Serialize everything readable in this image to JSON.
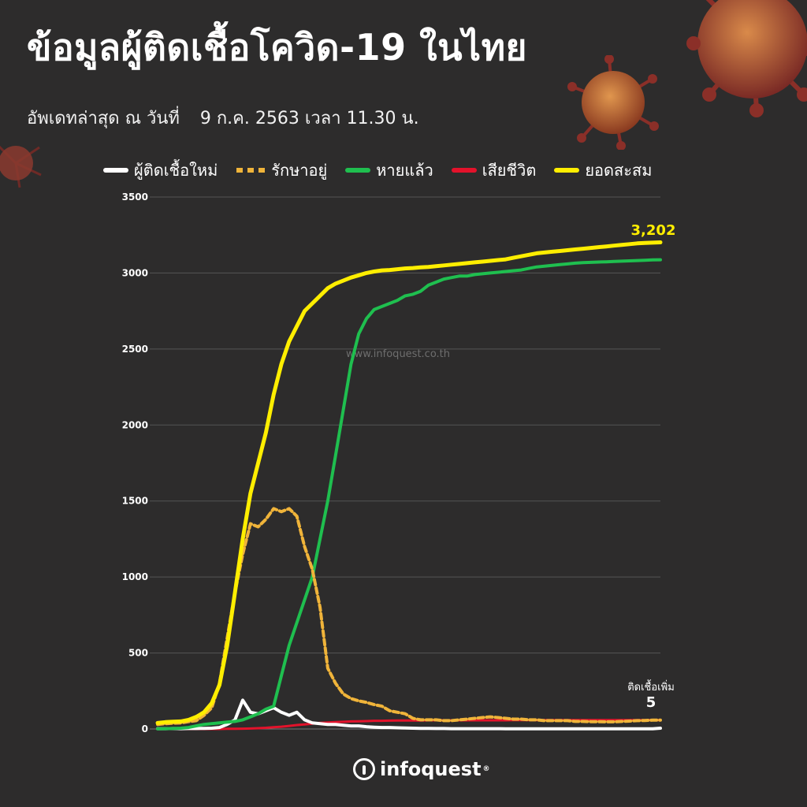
{
  "header": {
    "title": "ข้อมูลผู้ติดเชื้อโควิด-19 ในไทย",
    "update_label": "อัพเดทล่าสุด ณ วันที่",
    "update_date": "9 ก.ค. 2563 เวลา 11.30 น."
  },
  "colors": {
    "new": "#ffffff",
    "treating": "#f0b43a",
    "recovered": "#1fbf4f",
    "deaths": "#e3122b",
    "cumulative": "#ffee00",
    "grid": "#555555",
    "axis_text": "#ffffff"
  },
  "chart_data": {
    "type": "line",
    "ylim": [
      0,
      3500
    ],
    "yticks": [
      0,
      500,
      1000,
      1500,
      2000,
      2500,
      3000,
      3500
    ],
    "ytick_labels": [
      "0",
      "500",
      "1000",
      "1500",
      "2000",
      "2500",
      "3000",
      "3500"
    ],
    "watermark": "www.infoquest.co.th",
    "x": [
      0,
      1,
      2,
      3,
      4,
      5,
      6,
      7,
      8,
      9,
      10,
      11,
      12,
      13,
      14,
      15,
      16,
      17,
      18,
      19,
      20,
      21,
      22,
      23,
      24,
      25,
      26,
      27,
      28,
      29,
      30,
      31,
      32,
      33,
      34,
      35,
      36,
      37,
      38,
      39,
      40,
      41,
      42,
      43,
      44,
      45,
      46,
      47,
      48,
      49,
      50,
      51,
      52,
      53,
      54,
      55,
      56,
      57,
      58,
      59,
      60,
      61,
      62,
      63,
      64,
      65
    ],
    "series": [
      {
        "key": "new",
        "name": "ผู้ติดเชื้อใหม่",
        "values": [
          2,
          2,
          3,
          2,
          3,
          3,
          4,
          5,
          10,
          30,
          60,
          190,
          110,
          100,
          120,
          140,
          110,
          90,
          110,
          60,
          40,
          35,
          30,
          30,
          25,
          20,
          20,
          15,
          12,
          10,
          10,
          8,
          6,
          5,
          4,
          4,
          3,
          3,
          2,
          2,
          2,
          2,
          2,
          2,
          2,
          1,
          1,
          1,
          1,
          1,
          1,
          1,
          1,
          1,
          1,
          1,
          1,
          1,
          1,
          1,
          1,
          1,
          1,
          1,
          1,
          5
        ]
      },
      {
        "key": "treating",
        "name": "รักษาอยู่",
        "values": [
          30,
          35,
          38,
          40,
          48,
          55,
          90,
          140,
          300,
          600,
          900,
          1150,
          1350,
          1330,
          1380,
          1450,
          1430,
          1450,
          1400,
          1200,
          1050,
          800,
          400,
          300,
          230,
          200,
          185,
          175,
          160,
          150,
          120,
          110,
          100,
          70,
          60,
          60,
          60,
          55,
          55,
          60,
          65,
          70,
          75,
          80,
          75,
          70,
          65,
          65,
          60,
          60,
          55,
          55,
          55,
          55,
          50,
          50,
          48,
          48,
          47,
          47,
          50,
          52,
          55,
          56,
          58,
          58
        ]
      },
      {
        "key": "recovered",
        "name": "หายแล้ว",
        "values": [
          1,
          2,
          3,
          5,
          10,
          20,
          30,
          35,
          40,
          45,
          50,
          60,
          80,
          100,
          130,
          150,
          350,
          550,
          700,
          850,
          1000,
          1250,
          1500,
          1800,
          2100,
          2400,
          2600,
          2700,
          2760,
          2780,
          2800,
          2820,
          2850,
          2860,
          2880,
          2920,
          2940,
          2960,
          2970,
          2980,
          2980,
          2990,
          2995,
          3000,
          3005,
          3010,
          3015,
          3020,
          3030,
          3040,
          3045,
          3050,
          3055,
          3060,
          3065,
          3068,
          3070,
          3072,
          3074,
          3076,
          3078,
          3080,
          3082,
          3084,
          3086,
          3087
        ]
      },
      {
        "key": "deaths",
        "name": "เสียชีวิต",
        "values": [
          0,
          0,
          0,
          0,
          0,
          0,
          0,
          0,
          0,
          1,
          1,
          2,
          3,
          5,
          8,
          12,
          15,
          20,
          26,
          30,
          35,
          40,
          43,
          45,
          47,
          50,
          51,
          52,
          54,
          54,
          55,
          56,
          56,
          56,
          56,
          57,
          57,
          57,
          57,
          57,
          57,
          57,
          57,
          57,
          57,
          57,
          58,
          58,
          58,
          58,
          58,
          58,
          58,
          58,
          58,
          58,
          58,
          58,
          58,
          58,
          58,
          58,
          58,
          58,
          58,
          58
        ]
      },
      {
        "key": "cumulative",
        "name": "ยอดสะสม",
        "values": [
          40,
          45,
          48,
          50,
          60,
          80,
          110,
          170,
          290,
          550,
          900,
          1250,
          1550,
          1750,
          1950,
          2200,
          2400,
          2550,
          2650,
          2750,
          2800,
          2850,
          2900,
          2930,
          2950,
          2970,
          2985,
          3000,
          3010,
          3017,
          3020,
          3025,
          3030,
          3033,
          3037,
          3040,
          3045,
          3050,
          3055,
          3060,
          3065,
          3070,
          3075,
          3080,
          3085,
          3090,
          3100,
          3110,
          3120,
          3130,
          3135,
          3140,
          3145,
          3150,
          3155,
          3160,
          3165,
          3170,
          3175,
          3180,
          3185,
          3190,
          3195,
          3198,
          3200,
          3202
        ]
      }
    ],
    "annotations": {
      "cumulative_value": "3,202",
      "new_label": "ติดเชื้อเพิ่ม",
      "new_value": "5"
    },
    "legend_position": "top"
  },
  "brand": {
    "name": "infoquest",
    "mark": "®"
  }
}
